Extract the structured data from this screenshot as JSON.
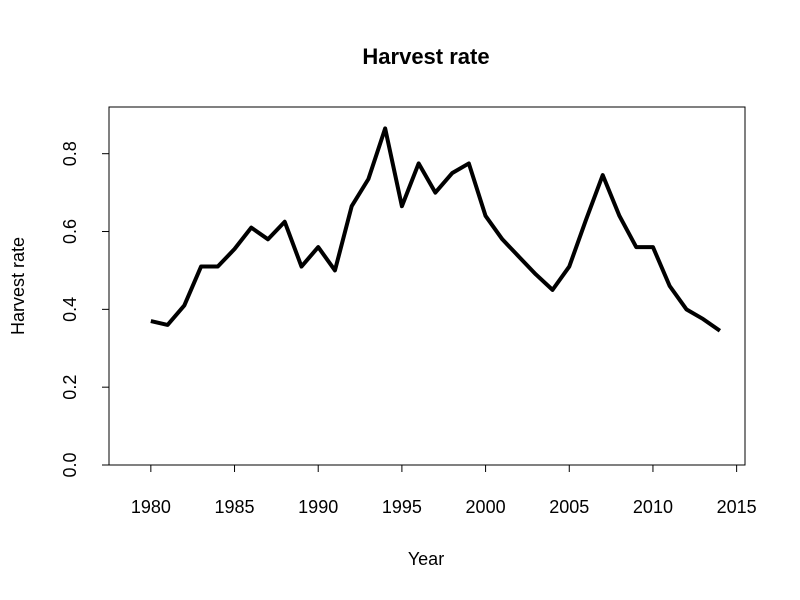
{
  "chart_data": {
    "type": "line",
    "title": "Harvest rate",
    "xlabel": "Year",
    "ylabel": "Harvest rate",
    "xlim": [
      1977.5,
      2015.5
    ],
    "ylim": [
      0,
      0.92
    ],
    "x_ticks": [
      1980,
      1985,
      1990,
      1995,
      2000,
      2005,
      2010,
      2015
    ],
    "y_ticks": [
      0.0,
      0.2,
      0.4,
      0.6,
      0.8
    ],
    "y_tick_labels": [
      "0.0",
      "0.2",
      "0.4",
      "0.6",
      "0.8"
    ],
    "grid": false,
    "line_color": "#000000",
    "series": [
      {
        "x": [
          1980,
          1981,
          1982,
          1983,
          1984,
          1985,
          1986,
          1987,
          1988,
          1989,
          1990,
          1991,
          1992,
          1993,
          1994,
          1995,
          1996,
          1997,
          1998,
          1999,
          2000,
          2001,
          2002,
          2003,
          2004,
          2005,
          2006,
          2007,
          2008,
          2009,
          2010,
          2011,
          2012,
          2013,
          2014
        ],
        "y": [
          0.37,
          0.36,
          0.41,
          0.51,
          0.51,
          0.555,
          0.61,
          0.58,
          0.625,
          0.51,
          0.56,
          0.5,
          0.665,
          0.735,
          0.865,
          0.665,
          0.775,
          0.7,
          0.75,
          0.775,
          0.64,
          0.58,
          0.535,
          0.49,
          0.45,
          0.51,
          0.63,
          0.745,
          0.64,
          0.56,
          0.56,
          0.46,
          0.4,
          0.375,
          0.345
        ]
      }
    ]
  }
}
